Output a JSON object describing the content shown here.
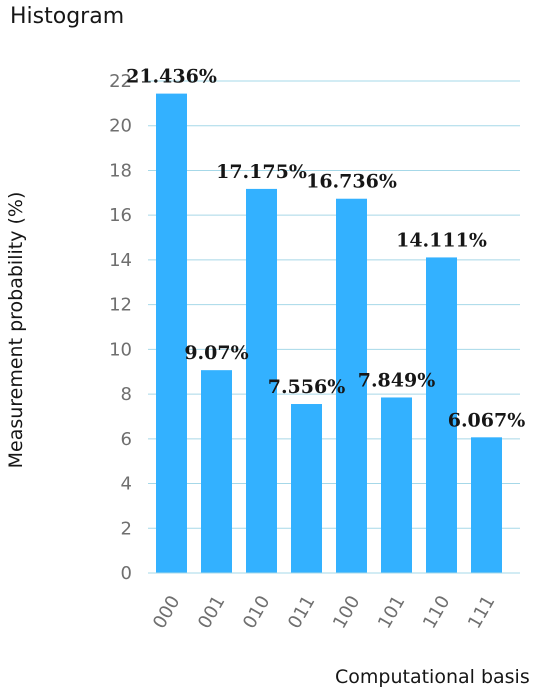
{
  "chart_data": {
    "type": "bar",
    "title": "Histogram",
    "xlabel": "Computational basis",
    "ylabel": "Measurement probability (%)",
    "categories": [
      "000",
      "001",
      "010",
      "011",
      "100",
      "101",
      "110",
      "111"
    ],
    "values": [
      21.436,
      9.07,
      17.175,
      7.556,
      16.736,
      7.849,
      14.111,
      6.067
    ],
    "data_labels": [
      "21.436%",
      "9.07%",
      "17.175%",
      "7.556%",
      "16.736%",
      "7.849%",
      "14.111%",
      "6.067%"
    ],
    "ylim": [
      0,
      22
    ],
    "yticks": [
      0,
      2,
      4,
      6,
      8,
      10,
      12,
      14,
      16,
      18,
      20,
      22
    ],
    "grid": true,
    "bar_color": "#33b1ff",
    "grid_color": "#a6d8e8"
  }
}
